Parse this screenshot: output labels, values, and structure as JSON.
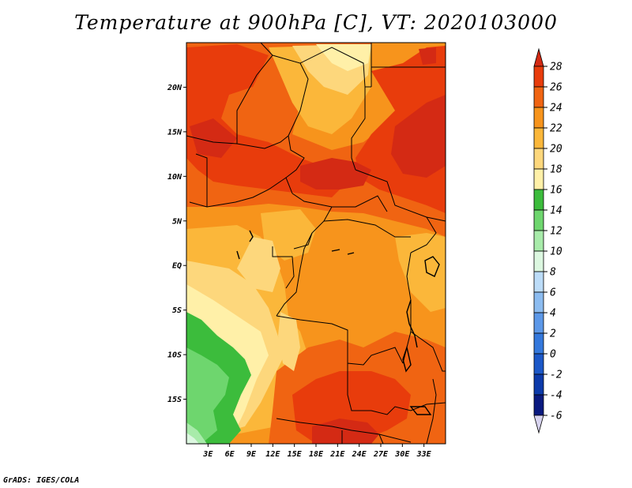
{
  "title": "Temperature at 900hPa [C], VT: 2020103000",
  "footer": "GrADS: IGES/COLA",
  "map": {
    "lon_range": [
      0,
      36
    ],
    "lat_range": [
      -20,
      25
    ],
    "lat_ticks": [
      "20N",
      "15N",
      "10N",
      "5N",
      "EQ",
      "5S",
      "10S",
      "15S"
    ],
    "lon_ticks": [
      "3E",
      "6E",
      "9E",
      "12E",
      "15E",
      "18E",
      "21E",
      "24E",
      "27E",
      "30E",
      "33E"
    ]
  },
  "colorbar": {
    "labels": [
      "28",
      "26",
      "24",
      "22",
      "20",
      "18",
      "16",
      "14",
      "12",
      "10",
      "8",
      "6",
      "4",
      "2",
      "0",
      "-2",
      "-4",
      "-6"
    ],
    "colors": {
      "gt28": "#d42a14",
      "26_28": "#e83c0c",
      "24_26": "#f06412",
      "22_24": "#f7941c",
      "20_22": "#fbb73a",
      "18_20": "#fdd77c",
      "16_18": "#fff0a8",
      "14_16": "#3cbc3c",
      "12_14": "#6ed66e",
      "10_12": "#a8ebaa",
      "8_10": "#dcf7e0",
      "6_8": "#bcdcf8",
      "4_6": "#8cbcf0",
      "2_4": "#5c98e8",
      "0_2": "#3478dc",
      "m2_0": "#1c58c8",
      "m4_m2": "#0c3aaa",
      "m6_m4": "#0a1a80",
      "lt_m6": "#d8d4f0"
    }
  }
}
